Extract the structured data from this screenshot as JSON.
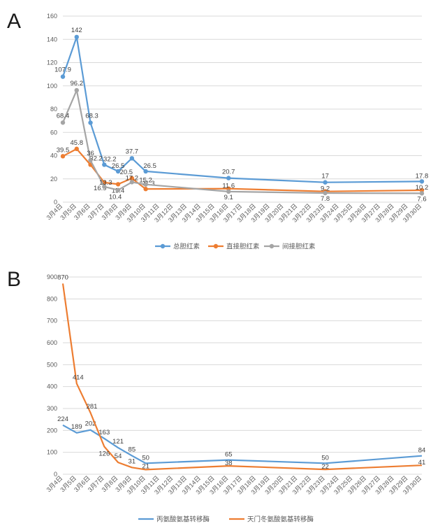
{
  "panels": {
    "a_label": "A",
    "b_label": "B"
  },
  "chart_data": [
    {
      "type": "line",
      "panel": "A",
      "title": "",
      "x": [
        "3月4日",
        "3月5日",
        "3月6日",
        "3月7日",
        "3月8日",
        "3月9日",
        "3月10日",
        "3月11日",
        "3月12日",
        "3月13日",
        "3月14日",
        "3月15日",
        "3月16日",
        "3月17日",
        "3月18日",
        "3月19日",
        "3月20日",
        "3月21日",
        "3月22日",
        "3月23日",
        "3月24日",
        "3月25日",
        "3月26日",
        "3月27日",
        "3月28日",
        "3月29日",
        "3月30日"
      ],
      "ylim": [
        0,
        160
      ],
      "yticks": [
        0,
        20,
        40,
        60,
        80,
        100,
        120,
        140,
        160
      ],
      "grid": true,
      "legend_position": "bottom",
      "series": [
        {
          "name": "总胆红素",
          "color": "#5b9bd5",
          "points": [
            [
              0,
              107.9
            ],
            [
              1,
              142
            ],
            [
              2,
              68.3
            ],
            [
              3,
              32.2
            ],
            [
              4,
              26.5
            ],
            [
              5,
              37.7
            ],
            [
              6,
              26.5
            ],
            [
              12,
              20.7
            ],
            [
              19,
              17
            ],
            [
              26,
              17.8
            ]
          ],
          "labels": [
            "107.9",
            "142",
            "68.3",
            "32.2",
            "26.5",
            "37.7",
            "26.5",
            "20.7",
            "17",
            "17.8"
          ]
        },
        {
          "name": "直接胆红素",
          "color": "#ed7d31",
          "points": [
            [
              0,
              39.5
            ],
            [
              1,
              45.8
            ],
            [
              2,
              32.2
            ],
            [
              3,
              16.9
            ],
            [
              4,
              15.4
            ],
            [
              5,
              20.5
            ],
            [
              6,
              11.3
            ],
            [
              12,
              11.6
            ],
            [
              19,
              9.2
            ],
            [
              26,
              10.2
            ]
          ],
          "labels": [
            "39.5",
            "45.8",
            "32.2",
            "16.9",
            "15.4",
            "20.5",
            "11.3",
            "11.6",
            "9.2",
            "10.2"
          ]
        },
        {
          "name": "间接胆红素",
          "color": "#a5a5a5",
          "points": [
            [
              0,
              68.4
            ],
            [
              1,
              96.2
            ],
            [
              2,
              36
            ],
            [
              3,
              13.3
            ],
            [
              4,
              10.4
            ],
            [
              5,
              17.2
            ],
            [
              6,
              15.2
            ],
            [
              12,
              9.1
            ],
            [
              19,
              7.8
            ],
            [
              26,
              7.6
            ]
          ],
          "labels": [
            "68.4",
            "96.2",
            "36",
            "13.3",
            "10.4",
            "17.2",
            "15.2",
            "9.1",
            "7.8",
            "7.6"
          ]
        }
      ]
    },
    {
      "type": "line",
      "panel": "B",
      "title": "",
      "x": [
        "3月4日",
        "3月5日",
        "3月6日",
        "3月7日",
        "3月8日",
        "3月9日",
        "3月10日",
        "3月11日",
        "3月12日",
        "3月13日",
        "3月14日",
        "3月15日",
        "3月16日",
        "3月17日",
        "3月18日",
        "3月19日",
        "3月20日",
        "3月21日",
        "3月22日",
        "3月23日",
        "3月24日",
        "3月25日",
        "3月26日",
        "3月27日",
        "3月28日",
        "3月29日",
        "3月30日"
      ],
      "ylim": [
        0,
        900
      ],
      "yticks": [
        0,
        100,
        200,
        300,
        400,
        500,
        600,
        700,
        800,
        900
      ],
      "grid": true,
      "legend_position": "bottom",
      "series": [
        {
          "name": "丙氨酸氨基转移酶",
          "color": "#5b9bd5",
          "points": [
            [
              0,
              224
            ],
            [
              1,
              189
            ],
            [
              2,
              202
            ],
            [
              3,
              163
            ],
            [
              4,
              121
            ],
            [
              5,
              85
            ],
            [
              6,
              50
            ],
            [
              12,
              65
            ],
            [
              19,
              50
            ],
            [
              26,
              84
            ]
          ],
          "labels": [
            "224",
            "189",
            "202",
            "163",
            "121",
            "85",
            "50",
            "65",
            "50",
            "84"
          ]
        },
        {
          "name": "天门冬氨酸氨基转移酶",
          "color": "#ed7d31",
          "points": [
            [
              0,
              870
            ],
            [
              1,
              414
            ],
            [
              2,
              281
            ],
            [
              3,
              126
            ],
            [
              4,
              54
            ],
            [
              5,
              31
            ],
            [
              6,
              21
            ],
            [
              12,
              38
            ],
            [
              19,
              22
            ],
            [
              26,
              41
            ]
          ],
          "labels": [
            "870",
            "414",
            "281",
            "126",
            "54",
            "31",
            "21",
            "38",
            "22",
            "41"
          ]
        }
      ]
    }
  ]
}
